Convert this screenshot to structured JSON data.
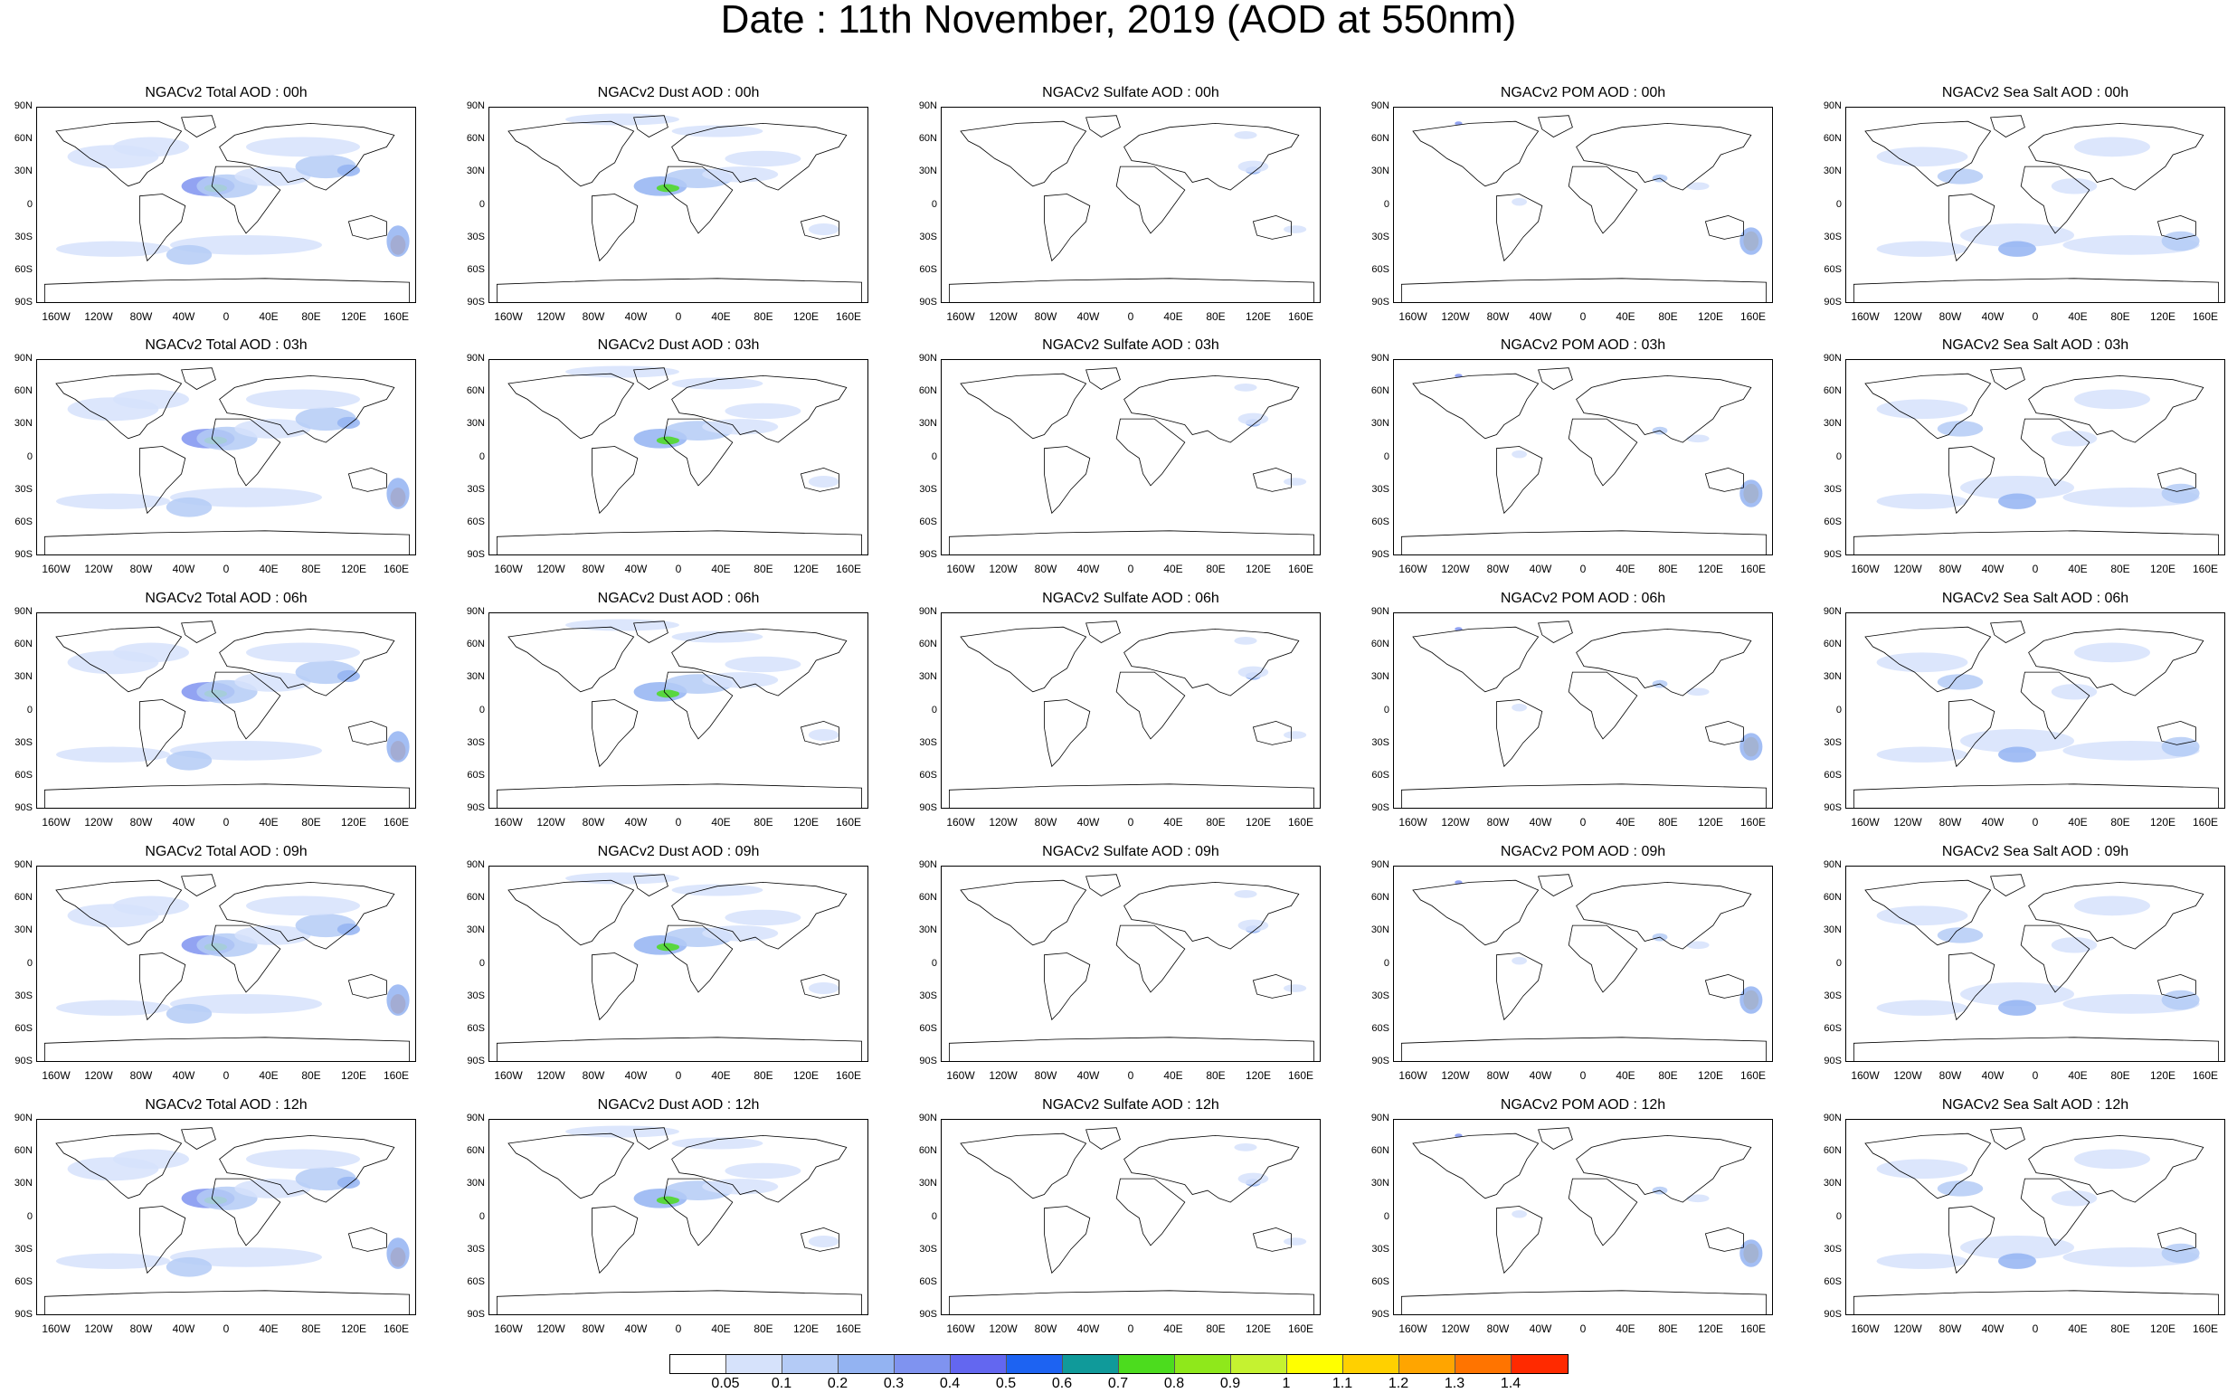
{
  "title": "Date : 11th November, 2019 (AOD at 550nm)",
  "species": [
    {
      "key": "total",
      "label": "NGACv2 Total AOD"
    },
    {
      "key": "dust",
      "label": "NGACv2 Dust AOD"
    },
    {
      "key": "sulfate",
      "label": "NGACv2 Sulfate AOD"
    },
    {
      "key": "pom",
      "label": "NGACv2 POM AOD"
    },
    {
      "key": "seasalt",
      "label": "NGACv2 Sea Salt AOD"
    }
  ],
  "panel_titles": [
    [
      "NGACv2 Total AOD : 00h",
      "NGACv2 Dust AOD : 00h",
      "NGACv2 Sulfate AOD : 00h",
      "NGACv2 POM AOD : 00h",
      "NGACv2 Sea Salt AOD : 00h"
    ],
    [
      "NGACv2 Total AOD : 03h",
      "NGACv2 Dust AOD : 03h",
      "NGACv2 Sulfate AOD : 03h",
      "NGACv2 POM AOD : 03h",
      "NGACv2 Sea Salt AOD : 03h"
    ],
    [
      "NGACv2 Total AOD : 06h",
      "NGACv2 Dust AOD : 06h",
      "NGACv2 Sulfate AOD : 06h",
      "NGACv2 POM AOD : 06h",
      "NGACv2 Sea Salt AOD : 06h"
    ],
    [
      "NGACv2 Total AOD : 09h",
      "NGACv2 Dust AOD : 09h",
      "NGACv2 Sulfate AOD : 09h",
      "NGACv2 POM AOD : 09h",
      "NGACv2 Sea Salt  AOD : 09h"
    ],
    [
      "NGACv2 Total AOD  : 12h",
      "NGACv2 Dust AOD : 12h",
      "NGACv2 Sulfate AOD : 12h",
      "NGACv2 POM  AOD : 12h",
      "NGACv2 Sea Salt  AOD : 12h"
    ]
  ],
  "lat_labels": [
    "90N",
    "60N",
    "30N",
    "0",
    "30S",
    "60S",
    "90S"
  ],
  "lon_labels": [
    "160W",
    "120W",
    "80W",
    "40W",
    "0",
    "40E",
    "80E",
    "120E",
    "160E"
  ],
  "colorbar": {
    "labels": [
      "0.05",
      "0.1",
      "0.2",
      "0.3",
      "0.4",
      "0.5",
      "0.6",
      "0.7",
      "0.8",
      "0.9",
      "1",
      "1.1",
      "1.2",
      "1.3",
      "1.4"
    ],
    "colors": [
      "#ffffff",
      "#d6e2fb",
      "#b4cbf6",
      "#93b3f2",
      "#7f93f0",
      "#6367f0",
      "#1d63f2",
      "#109a9a",
      "#4cdc1e",
      "#8fe81b",
      "#c5f230",
      "#ffff00",
      "#ffd000",
      "#ffa500",
      "#ff7400",
      "#ff2a00"
    ]
  }
}
